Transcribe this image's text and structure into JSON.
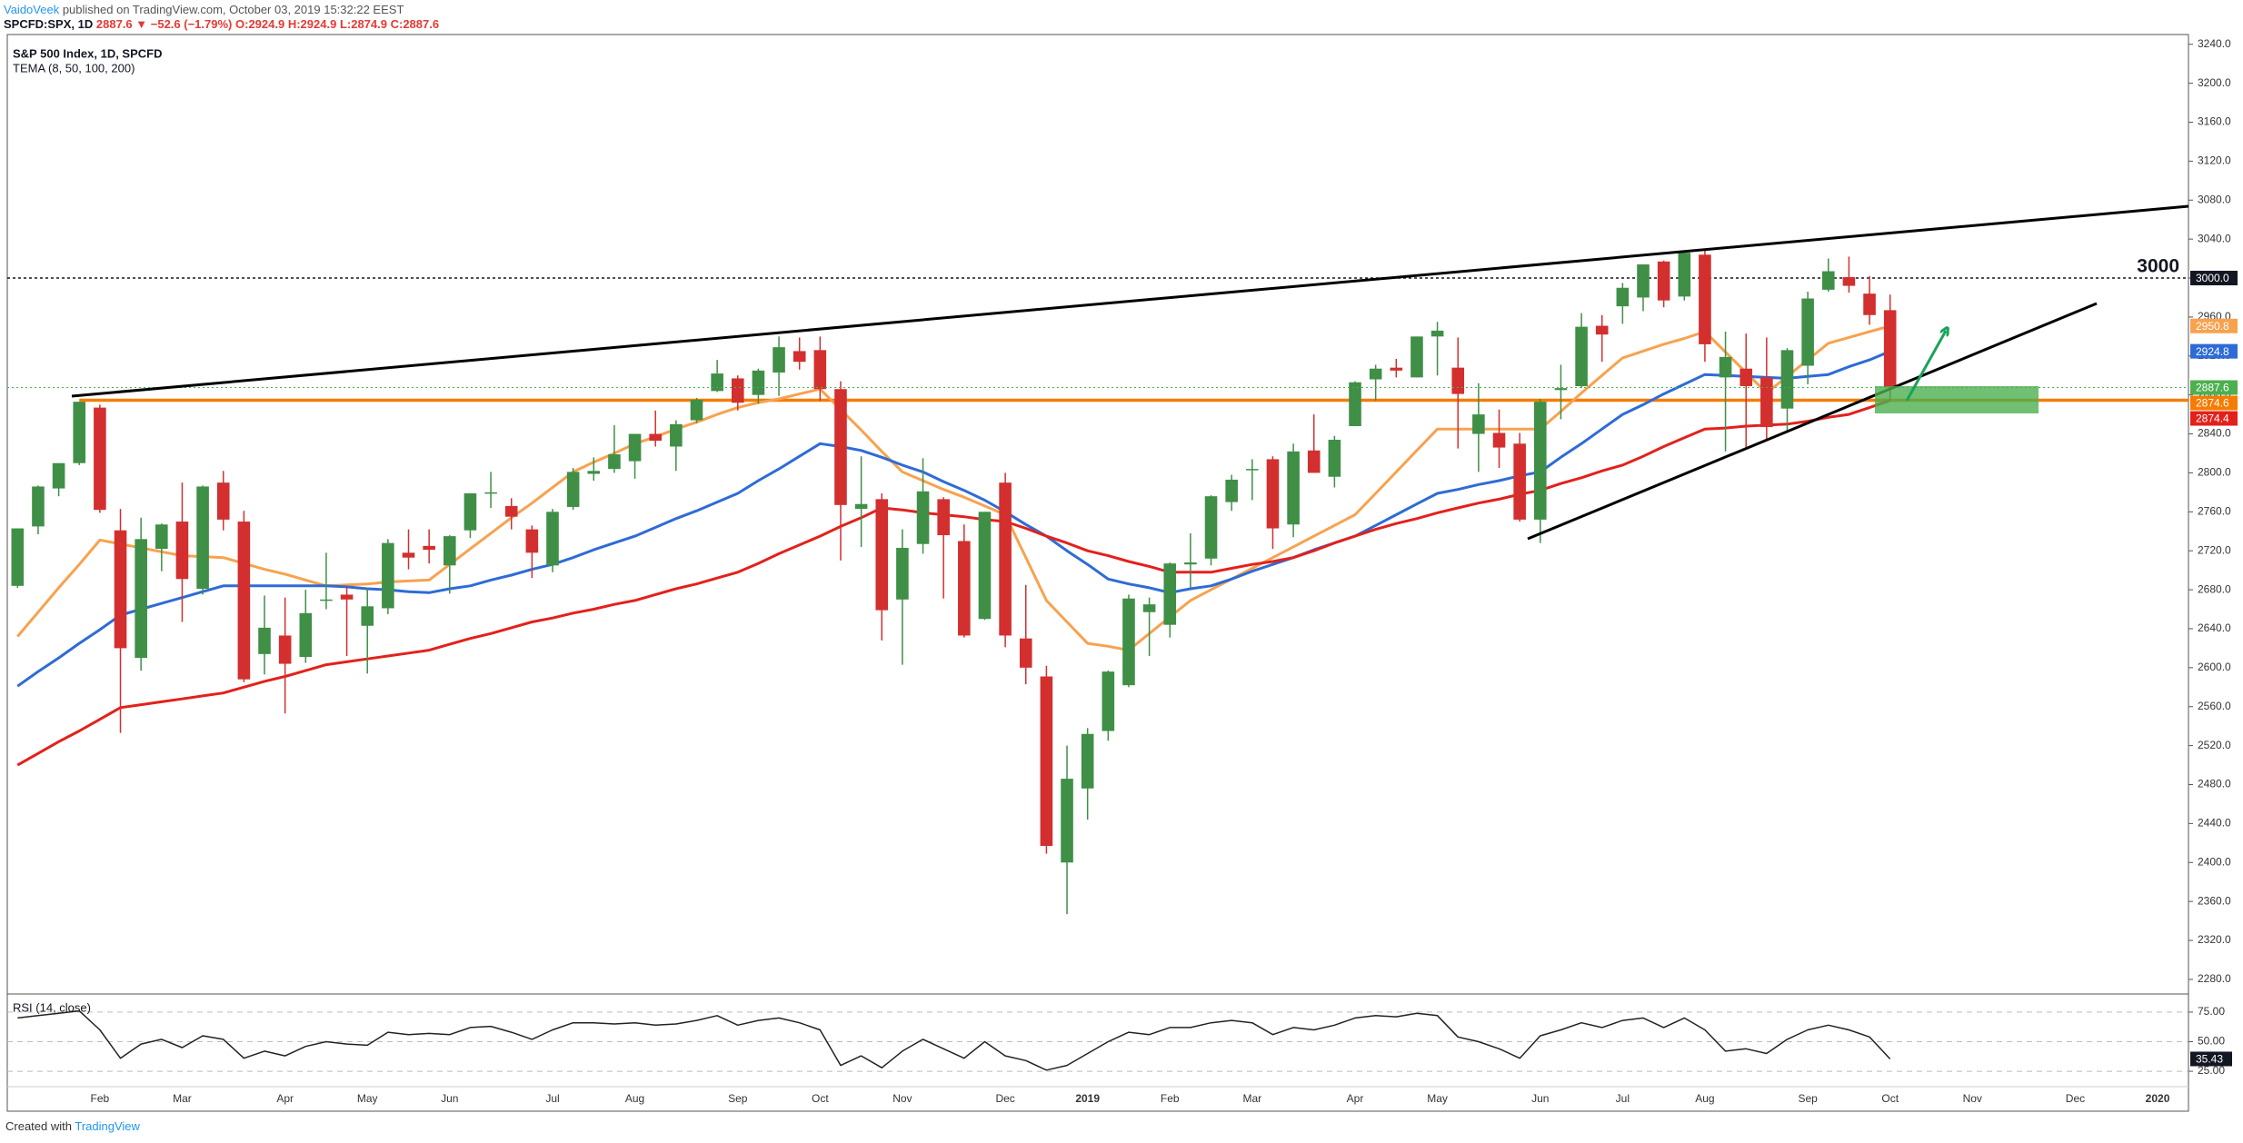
{
  "header": {
    "author": "VaidoVeek",
    "published": "published on TradingView.com, October 03, 2019 15:32:22 EEST",
    "symbol": "SPCFD:SPX, 1D",
    "last": "2887.6",
    "change": "▼ −52.6 (−1.79%)",
    "open": "O:2924.9",
    "high": "H:2924.9",
    "low": "L:2874.9",
    "close": "C:2887.6"
  },
  "footer": {
    "text": "Created with",
    "brand": "TradingView"
  },
  "chart_data": [
    {
      "type": "candlestick",
      "title": "S&P 500 Index, 1D, SPCFD",
      "subtitle": "TEMA (8, 50, 100, 200)",
      "categories": [
        null,
        null,
        null,
        null,
        "Feb",
        null,
        null,
        null,
        "Mar",
        null,
        null,
        null,
        null,
        "Apr",
        null,
        null,
        null,
        "May",
        null,
        null,
        null,
        "Jun",
        null,
        null,
        null,
        null,
        "Jul",
        null,
        null,
        null,
        "Aug",
        null,
        null,
        null,
        null,
        "Sep",
        null,
        null,
        null,
        "Oct",
        null,
        null,
        null,
        "Nov",
        null,
        null,
        null,
        null,
        "Dec",
        null,
        null,
        null,
        "2019",
        null,
        null,
        null,
        "Feb",
        null,
        null,
        null,
        "Mar",
        null,
        null,
        null,
        null,
        "Apr",
        null,
        null,
        null,
        "May",
        null,
        null,
        null,
        null,
        "Jun",
        null,
        null,
        null,
        "Jul",
        null,
        null,
        null,
        "Aug",
        null,
        null,
        null,
        null,
        "Sep",
        null,
        null,
        null,
        "Oct",
        null,
        null,
        null,
        "Nov",
        null,
        null,
        null,
        null,
        "Dec",
        null,
        null,
        null,
        "2020",
        null
      ],
      "open": [
        2684,
        2745,
        2784,
        2810,
        2867,
        2741,
        2610,
        2722,
        2750,
        2681,
        2790,
        2750,
        2614,
        2633,
        2611,
        2670,
        2675,
        2643,
        2661,
        2718,
        2725,
        2705,
        2741,
        2780,
        2766,
        2742,
        2705,
        2765,
        2799,
        2804,
        2812,
        2840,
        2827,
        2854,
        2884,
        2897,
        2880,
        2903,
        2925,
        2926,
        2886,
        2763,
        2773,
        2670,
        2727,
        2773,
        2730,
        2650,
        2790,
        2630,
        2591,
        2400,
        2476,
        2535,
        2582,
        2657,
        2644,
        2706,
        2712,
        2770,
        2804,
        2814,
        2747,
        2823,
        2796,
        2848,
        2896,
        2908,
        2898,
        2940,
        2908,
        2840,
        2841,
        2830,
        2752,
        2885,
        2889,
        2951,
        2971,
        2980,
        3017,
        2981,
        3024,
        2898,
        2907,
        2898,
        2866,
        2910,
        2988,
        3001,
        2984,
        2967,
        null,
        null,
        null,
        null,
        null,
        null,
        null,
        null,
        null,
        null,
        null,
        null,
        null,
        null
      ],
      "high": [
        2743,
        2787,
        2810,
        2873,
        2870,
        2763,
        2754,
        2748,
        2790,
        2787,
        2802,
        2761,
        2674,
        2672,
        2680,
        2718,
        2683,
        2682,
        2732,
        2742,
        2742,
        2736,
        2779,
        2801,
        2774,
        2746,
        2763,
        2805,
        2816,
        2849,
        2840,
        2864,
        2854,
        2877,
        2916,
        2900,
        2907,
        2940,
        2939,
        2940,
        2894,
        2817,
        2779,
        2742,
        2815,
        2775,
        2747,
        2760,
        2800,
        2685,
        2602,
        2520,
        2538,
        2597,
        2675,
        2672,
        2708,
        2738,
        2777,
        2798,
        2814,
        2817,
        2830,
        2860,
        2838,
        2894,
        2911,
        2917,
        2940,
        2955,
        2939,
        2892,
        2865,
        2841,
        2876,
        2911,
        2964,
        2962,
        2995,
        3013,
        3018,
        3028,
        3029,
        2945,
        2943,
        2939,
        2928,
        2986,
        3020,
        3022,
        3002,
        2983,
        null,
        null,
        null,
        null,
        null,
        null,
        null,
        null,
        null,
        null,
        null,
        null,
        null,
        null
      ],
      "low": [
        2682,
        2737,
        2776,
        2808,
        2759,
        2533,
        2597,
        2699,
        2647,
        2675,
        2741,
        2585,
        2593,
        2553,
        2605,
        2660,
        2612,
        2594,
        2655,
        2701,
        2707,
        2676,
        2733,
        2764,
        2742,
        2692,
        2698,
        2762,
        2792,
        2800,
        2794,
        2827,
        2802,
        2851,
        2883,
        2864,
        2871,
        2879,
        2906,
        2874,
        2710,
        2724,
        2628,
        2603,
        2717,
        2671,
        2631,
        2649,
        2621,
        2583,
        2409,
        2347,
        2444,
        2525,
        2580,
        2612,
        2631,
        2682,
        2705,
        2761,
        2772,
        2722,
        2734,
        2800,
        2785,
        2848,
        2874,
        2898,
        2898,
        2900,
        2825,
        2801,
        2805,
        2750,
        2728,
        2855,
        2887,
        2914,
        2953,
        2966,
        2970,
        2977,
        2914,
        2822,
        2825,
        2835,
        2843,
        2891,
        2986,
        2985,
        2952,
        2874,
        null,
        null,
        null,
        null,
        null,
        null,
        null,
        null,
        null,
        null,
        null,
        null,
        null,
        null
      ],
      "close": [
        2743,
        2786,
        2810,
        2873,
        2762,
        2620,
        2732,
        2747,
        2691,
        2786,
        2752,
        2588,
        2641,
        2604,
        2656,
        2670,
        2670,
        2663,
        2728,
        2713,
        2721,
        2735,
        2779,
        2780,
        2755,
        2718,
        2760,
        2801,
        2802,
        2819,
        2840,
        2833,
        2850,
        2875,
        2902,
        2872,
        2905,
        2929,
        2914,
        2886,
        2767,
        2768,
        2659,
        2723,
        2781,
        2736,
        2633,
        2760,
        2633,
        2600,
        2417,
        2486,
        2532,
        2596,
        2671,
        2665,
        2707,
        2708,
        2776,
        2793,
        2804,
        2743,
        2822,
        2800,
        2834,
        2893,
        2907,
        2905,
        2940,
        2946,
        2881,
        2860,
        2826,
        2752,
        2873,
        2887,
        2950,
        2942,
        2990,
        3014,
        2977,
        3026,
        2932,
        2919,
        2889,
        2847,
        2926,
        2979,
        3007,
        2992,
        2962,
        2887.6,
        null,
        null,
        null,
        null,
        null,
        null,
        null,
        null,
        null,
        null,
        null,
        null,
        null,
        null
      ],
      "up_color": "#3f8f47",
      "down_color": "#d32f2f",
      "last_color": "#4caf50",
      "series": [
        {
          "color": "#f7a24f",
          "values": [
            2632,
            2657,
            2682,
            2706,
            2731,
            2727,
            2723,
            2719,
            2715,
            2714,
            2713,
            2707,
            2701,
            2696,
            2690,
            2684,
            2685,
            2686,
            2688,
            2689,
            2690,
            2706,
            2722,
            2738,
            2754,
            2769,
            2785,
            2801,
            2811,
            2820,
            2830,
            2837,
            2845,
            2852,
            2860,
            2867,
            2872,
            2876,
            2881,
            2886,
            2865,
            2844,
            2822,
            2801,
            2792,
            2783,
            2775,
            2766,
            2757,
            2713,
            2669,
            2647,
            2625,
            2622,
            2618,
            2635,
            2652,
            2669,
            2680,
            2691,
            2702,
            2713,
            2724,
            2735,
            2746,
            2757,
            2779,
            2801,
            2823,
            2845,
            2845,
            2845,
            2845,
            2845,
            2845,
            2863,
            2882,
            2900,
            2918,
            2925,
            2932,
            2938,
            2945,
            2924,
            2903,
            2882,
            2899,
            2916,
            2933,
            2939,
            2945,
            2950.8,
            null,
            null,
            null,
            null,
            null,
            null,
            null,
            null,
            null,
            null,
            null,
            null,
            null,
            null
          ]
        },
        {
          "color": "#2e6bd6",
          "values": [
            2581,
            2596,
            2610,
            2625,
            2639,
            2654,
            2660,
            2666,
            2672,
            2678,
            2684,
            2684,
            2684,
            2684,
            2684,
            2684,
            2683,
            2681,
            2680,
            2678,
            2677,
            2681,
            2684,
            2690,
            2695,
            2701,
            2706,
            2713,
            2721,
            2728,
            2735,
            2744,
            2753,
            2761,
            2770,
            2779,
            2792,
            2804,
            2817,
            2830,
            2827,
            2823,
            2816,
            2808,
            2801,
            2791,
            2782,
            2772,
            2760,
            2747,
            2735,
            2720,
            2706,
            2691,
            2686,
            2682,
            2677,
            2681,
            2684,
            2691,
            2699,
            2706,
            2713,
            2721,
            2728,
            2735,
            2746,
            2757,
            2768,
            2779,
            2783,
            2788,
            2792,
            2797,
            2801,
            2816,
            2830,
            2845,
            2860,
            2870,
            2881,
            2891,
            2901,
            2900,
            2899,
            2898,
            2897,
            2899,
            2901,
            2909,
            2916,
            2924.8,
            null,
            null,
            null,
            null,
            null,
            null,
            null,
            null,
            null,
            null,
            null,
            null,
            null,
            null
          ]
        },
        {
          "color": "#e3211b",
          "values": [
            2500,
            2512,
            2524,
            2535,
            2547,
            2559,
            2562,
            2565,
            2568,
            2571,
            2574,
            2580,
            2586,
            2591,
            2597,
            2603,
            2606,
            2609,
            2612,
            2615,
            2618,
            2624,
            2630,
            2635,
            2641,
            2647,
            2651,
            2656,
            2660,
            2665,
            2669,
            2675,
            2681,
            2686,
            2692,
            2698,
            2707,
            2717,
            2726,
            2735,
            2745,
            2754,
            2764,
            2762,
            2759,
            2757,
            2755,
            2752,
            2750,
            2743,
            2735,
            2728,
            2720,
            2715,
            2709,
            2704,
            2698,
            2698,
            2698,
            2702,
            2706,
            2709,
            2713,
            2720,
            2728,
            2735,
            2742,
            2748,
            2753,
            2759,
            2764,
            2769,
            2773,
            2778,
            2782,
            2789,
            2795,
            2802,
            2808,
            2817,
            2827,
            2836,
            2845,
            2846,
            2848,
            2849,
            2850,
            2853,
            2857,
            2860,
            2867,
            2874.4,
            null,
            null,
            null,
            null,
            null,
            null,
            null,
            null,
            null,
            null,
            null,
            null,
            null,
            null
          ]
        }
      ],
      "ylim": [
        2265,
        3250
      ],
      "yticks": [
        {
          "value": 2280,
          "label": "2280.0"
        },
        {
          "value": 2320,
          "label": "2320.0"
        },
        {
          "value": 2360,
          "label": "2360.0"
        },
        {
          "value": 2400,
          "label": "2400.0"
        },
        {
          "value": 2440,
          "label": "2440.0"
        },
        {
          "value": 2480,
          "label": "2480.0"
        },
        {
          "value": 2520,
          "label": "2520.0"
        },
        {
          "value": 2560,
          "label": "2560.0"
        },
        {
          "value": 2600,
          "label": "2600.0"
        },
        {
          "value": 2640,
          "label": "2640.0"
        },
        {
          "value": 2680,
          "label": "2680.0"
        },
        {
          "value": 2720,
          "label": "2720.0"
        },
        {
          "value": 2760,
          "label": "2760.0"
        },
        {
          "value": 2800,
          "label": "2800.0"
        },
        {
          "value": 2840,
          "label": "2840.0"
        },
        {
          "value": 2880,
          "label": "2880.0"
        },
        {
          "value": 2920,
          "label": "2920.0"
        },
        {
          "value": 2960,
          "label": "2960.0"
        },
        {
          "value": 3000,
          "label": "3000.0"
        },
        {
          "value": 3040,
          "label": "3040.0"
        },
        {
          "value": 3080,
          "label": "3080.0"
        },
        {
          "value": 3120,
          "label": "3120.0"
        },
        {
          "value": 3160,
          "label": "3160.0"
        },
        {
          "value": 3200,
          "label": "3200.0"
        },
        {
          "value": 3240,
          "label": "3240.0"
        }
      ],
      "grid": false,
      "price_line": {
        "value": 3000,
        "label": "3000.0",
        "color": "#131722"
      },
      "annotation": "3000",
      "horizontal_line": {
        "value": 2874.6,
        "color": "#f57c00"
      }
    },
    {
      "type": "line",
      "title": "RSI (14, close)",
      "color": "#222222",
      "values": [
        70,
        72,
        74,
        76,
        60,
        36,
        48,
        52,
        45,
        55,
        52,
        36,
        42,
        38,
        46,
        50,
        48,
        47,
        58,
        56,
        57,
        56,
        62,
        63,
        58,
        52,
        60,
        66,
        66,
        65,
        66,
        64,
        65,
        68,
        72,
        64,
        68,
        70,
        66,
        60,
        30,
        38,
        28,
        42,
        52,
        44,
        36,
        50,
        38,
        34,
        26,
        30,
        40,
        50,
        58,
        56,
        62,
        62,
        66,
        68,
        66,
        56,
        62,
        60,
        64,
        70,
        72,
        71,
        74,
        72,
        54,
        50,
        44,
        36,
        55,
        60,
        66,
        62,
        68,
        70,
        62,
        70,
        60,
        42,
        44,
        40,
        52,
        60,
        64,
        60,
        54,
        35.43,
        null,
        null,
        null,
        null,
        null,
        null,
        null,
        null,
        null,
        null,
        null,
        null,
        null,
        null
      ],
      "ylim": [
        12,
        88
      ],
      "yticks": [
        {
          "value": 75,
          "label": "75.00"
        },
        {
          "value": 50,
          "label": "50.00"
        },
        {
          "value": 25,
          "label": "25.00"
        }
      ]
    }
  ]
}
